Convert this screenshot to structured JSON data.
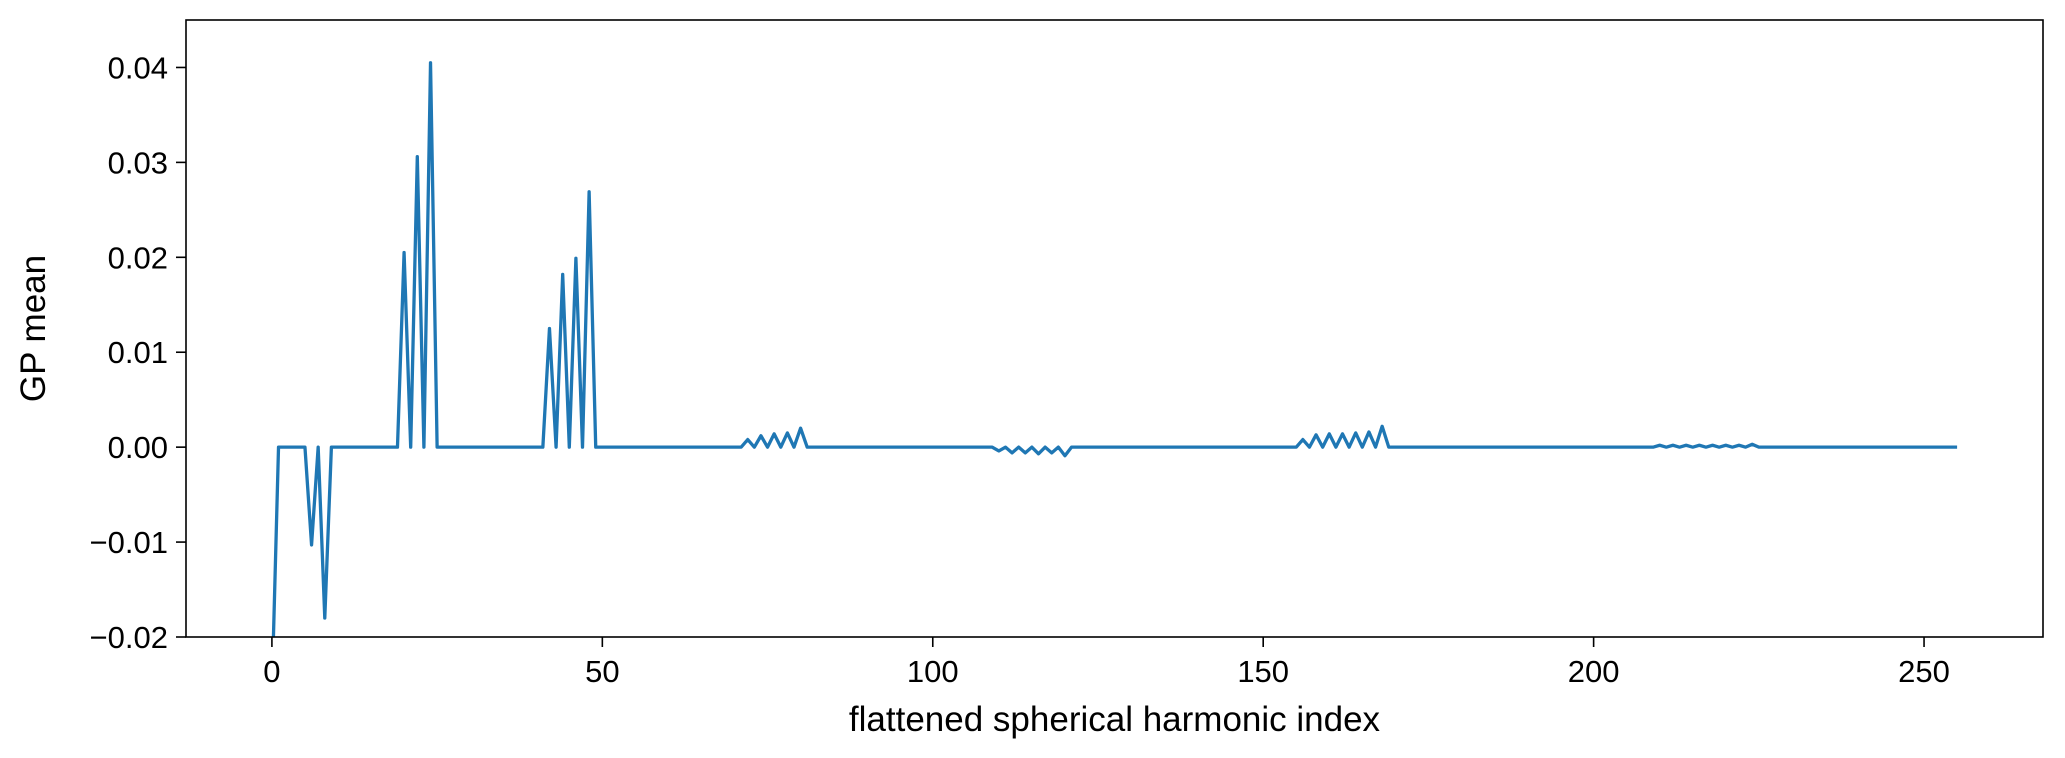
{
  "chart_data": {
    "type": "line",
    "title": "",
    "xlabel": "flattened spherical harmonic index",
    "ylabel": "GP mean",
    "xlim": [
      -13,
      268
    ],
    "ylim": [
      -0.02,
      0.045
    ],
    "xticks": [
      0,
      50,
      100,
      150,
      200,
      250
    ],
    "xtick_labels": [
      "0",
      "50",
      "100",
      "150",
      "200",
      "250"
    ],
    "yticks": [
      -0.02,
      -0.01,
      0.0,
      0.01,
      0.02,
      0.03,
      0.04
    ],
    "ytick_labels": [
      "−0.02",
      "−0.01",
      "0.00",
      "0.01",
      "0.02",
      "0.03",
      "0.04"
    ],
    "grid": false,
    "series": [
      {
        "color": "#1f77b4",
        "points": [
          [
            0,
            -0.026
          ],
          [
            1,
            0.0
          ],
          [
            5,
            0.0
          ],
          [
            6,
            -0.0103
          ],
          [
            7,
            0.0
          ],
          [
            8,
            -0.018
          ],
          [
            9,
            0.0
          ],
          [
            19,
            0.0
          ],
          [
            20,
            0.0205
          ],
          [
            21,
            0.0
          ],
          [
            22,
            0.0306
          ],
          [
            23,
            0.0
          ],
          [
            24,
            0.0405
          ],
          [
            25,
            0.0
          ],
          [
            41,
            0.0
          ],
          [
            42,
            0.0125
          ],
          [
            43,
            0.0
          ],
          [
            44,
            0.0182
          ],
          [
            45,
            0.0
          ],
          [
            46,
            0.0199
          ],
          [
            47,
            0.0
          ],
          [
            48,
            0.0269
          ],
          [
            49,
            0.0
          ],
          [
            71,
            0.0
          ],
          [
            72,
            0.0008
          ],
          [
            73,
            0.0
          ],
          [
            74,
            0.0012
          ],
          [
            75,
            0.0
          ],
          [
            76,
            0.0014
          ],
          [
            77,
            0.0
          ],
          [
            78,
            0.0015
          ],
          [
            79,
            0.0
          ],
          [
            80,
            0.002
          ],
          [
            81,
            0.0
          ],
          [
            109,
            0.0
          ],
          [
            110,
            -0.0004
          ],
          [
            111,
            0.0
          ],
          [
            112,
            -0.0006
          ],
          [
            113,
            0.0
          ],
          [
            114,
            -0.0006
          ],
          [
            115,
            0.0
          ],
          [
            116,
            -0.0007
          ],
          [
            117,
            0.0
          ],
          [
            118,
            -0.0006
          ],
          [
            119,
            0.0
          ],
          [
            120,
            -0.0009
          ],
          [
            121,
            0.0
          ],
          [
            155,
            0.0
          ],
          [
            156,
            0.0008
          ],
          [
            157,
            0.0
          ],
          [
            158,
            0.0013
          ],
          [
            159,
            0.0
          ],
          [
            160,
            0.0014
          ],
          [
            161,
            0.0
          ],
          [
            162,
            0.0014
          ],
          [
            163,
            0.0
          ],
          [
            164,
            0.0015
          ],
          [
            165,
            0.0
          ],
          [
            166,
            0.0016
          ],
          [
            167,
            0.0
          ],
          [
            168,
            0.0022
          ],
          [
            169,
            0.0
          ],
          [
            209,
            0.0
          ],
          [
            210,
            0.0002
          ],
          [
            211,
            0.0
          ],
          [
            212,
            0.0002
          ],
          [
            213,
            0.0
          ],
          [
            214,
            0.0002
          ],
          [
            215,
            0.0
          ],
          [
            216,
            0.0002
          ],
          [
            217,
            0.0
          ],
          [
            218,
            0.0002
          ],
          [
            219,
            0.0
          ],
          [
            220,
            0.0002
          ],
          [
            221,
            0.0
          ],
          [
            222,
            0.0002
          ],
          [
            223,
            0.0
          ],
          [
            224,
            0.0003
          ],
          [
            225,
            0.0
          ],
          [
            255,
            0.0
          ]
        ]
      }
    ]
  }
}
